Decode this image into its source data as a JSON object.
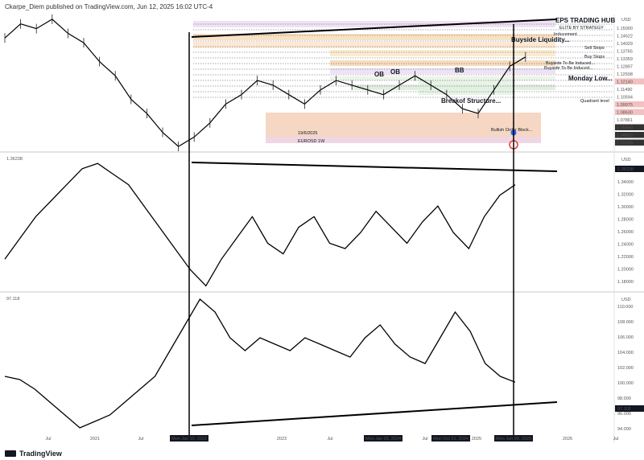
{
  "header": {
    "publisher": "Ckarpe_Diem published on TradingView.com, Jun 12, 2025 16:02 UTC-4"
  },
  "footer": {
    "brand": "TradingView"
  },
  "axis_currency": "USD",
  "colors": {
    "line": "#000000",
    "axis_bg": "#ffffff",
    "red_label": "#e53935",
    "blue_marker": "#2962ff"
  },
  "chart_data": [
    {
      "type": "line",
      "title": "EURUSD, 1W",
      "annotations": [
        "OB",
        "OB",
        "BB",
        "Breakof Structure...",
        "Buyside Liquidity...",
        "Inducement",
        "Buyside To Be Induced...",
        "Buyside To Be Induced...",
        "Monday Low...",
        "Buy Stops",
        "Sell Stops",
        "Quadrant level",
        "Bullish Order Block...",
        "EPS TRADING HUB",
        "ELITE BY STRATEGY",
        "19/6/2025",
        "EUROSD 1W"
      ],
      "price_labels": [
        "1.15000",
        "1.14622",
        "1.14029",
        "1.13765",
        "1.13359",
        "1.12897",
        "1.12508",
        "1.12140",
        "1.11490",
        "1.10594",
        "1.09975",
        "1.08630",
        "1.07861",
        "1.05550",
        "1.04803",
        "1.03169"
      ],
      "x_labels": [
        "Jul",
        "2021",
        "Jul",
        "2023",
        "Jul",
        "2024",
        "Jul",
        "2025",
        "Jul",
        "2026",
        "Jul"
      ],
      "values": [
        1.19,
        1.22,
        1.21,
        1.23,
        1.2,
        1.18,
        1.14,
        1.11,
        1.06,
        1.03,
        0.99,
        0.96,
        0.98,
        1.01,
        1.05,
        1.07,
        1.1,
        1.09,
        1.07,
        1.05,
        1.08,
        1.1,
        1.09,
        1.08,
        1.07,
        1.09,
        1.11,
        1.09,
        1.07,
        1.04,
        1.03,
        1.08,
        1.13,
        1.15
      ]
    },
    {
      "type": "line",
      "title": "",
      "current_value": "1.36238",
      "yticks": [
        "1.34000",
        "1.32000",
        "1.30000",
        "1.28000",
        "1.26000",
        "1.24000",
        "1.22000",
        "1.20000",
        "1.18000"
      ],
      "x_labels": [
        "Jul",
        "2021",
        "Jul",
        "2023",
        "Jul",
        "2024",
        "Jul",
        "2025",
        "Jul",
        "2026",
        "Jul"
      ],
      "values": [
        1.22,
        1.26,
        1.3,
        1.33,
        1.36,
        1.39,
        1.4,
        1.38,
        1.36,
        1.32,
        1.28,
        1.24,
        1.2,
        1.17,
        1.22,
        1.26,
        1.3,
        1.25,
        1.23,
        1.28,
        1.3,
        1.25,
        1.24,
        1.27,
        1.31,
        1.28,
        1.25,
        1.29,
        1.32,
        1.27,
        1.24,
        1.3,
        1.34,
        1.36
      ]
    },
    {
      "type": "line",
      "title": "",
      "current_value": "97.118",
      "yticks": [
        "110.000",
        "108.000",
        "106.000",
        "104.000",
        "102.000",
        "100.000",
        "98.000",
        "96.000",
        "94.000"
      ],
      "x_labels": [
        "Jul",
        "2021",
        "Jul",
        "2023",
        "Jul",
        "2024",
        "Jul",
        "2025",
        "Jul",
        "2026",
        "Jul"
      ],
      "date_labels": [
        "Mon Jan 10, 2022",
        "Mon Jan 29, 2024",
        "Mon Oct 21, 2024",
        "Mon Jun 09, 2025"
      ],
      "values": [
        98,
        97.5,
        96,
        94,
        92,
        90,
        91,
        92,
        94,
        96,
        98,
        102,
        106,
        110,
        108,
        104,
        102,
        104,
        103,
        102,
        104,
        103,
        102,
        101,
        104,
        106,
        103,
        101,
        100,
        104,
        108,
        105,
        100,
        98,
        97.1
      ]
    }
  ]
}
